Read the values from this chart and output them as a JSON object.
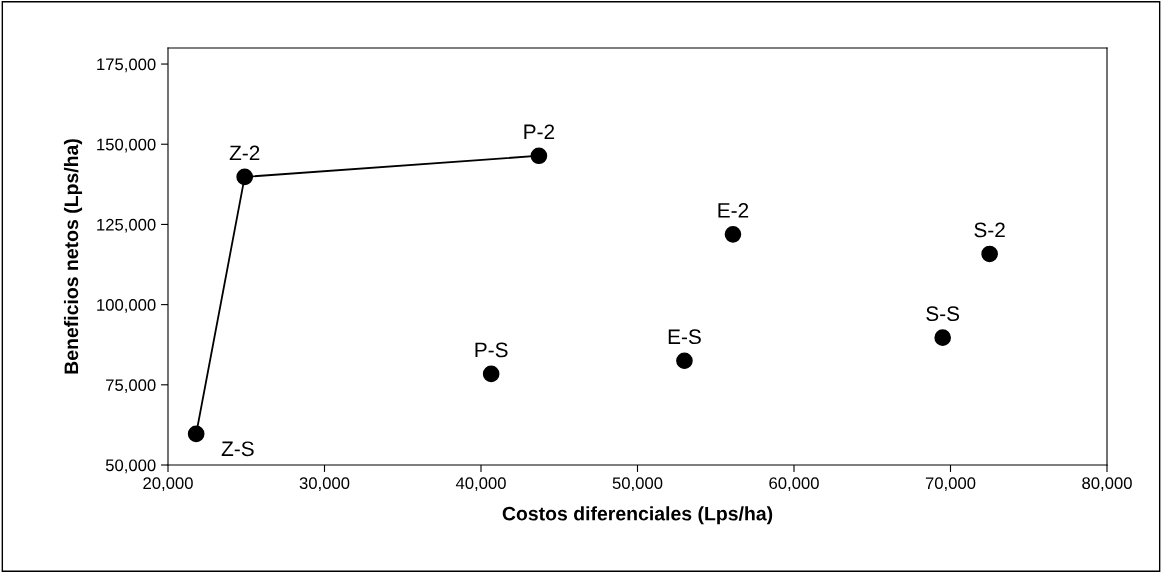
{
  "chart_data": {
    "type": "scatter",
    "xlabel": "Costos diferenciales (Lps/ha)",
    "ylabel": "Beneficios netos (Lps/ha)",
    "series": [
      {
        "type": "line",
        "color": "#000000",
        "x": [
          21800,
          24900,
          43700
        ],
        "values": [
          59700,
          139800,
          146400
        ]
      },
      {
        "color": "#000000",
        "x": [
          40650,
          53000,
          56100,
          69500,
          72500
        ],
        "values": [
          78400,
          82500,
          121900,
          89700,
          115800
        ]
      }
    ],
    "marker": "circle",
    "xlim": [
      20000,
      80000
    ],
    "xticks": [
      {
        "value": 20000,
        "label": "20,000"
      },
      {
        "value": 30000,
        "label": "30,000"
      },
      {
        "value": 40000,
        "label": "40,000"
      },
      {
        "value": 50000,
        "label": "50,000"
      },
      {
        "value": 60000,
        "label": "60,000"
      },
      {
        "value": 70000,
        "label": "70,000"
      },
      {
        "value": 80000,
        "label": "80,000"
      }
    ],
    "ylim": [
      50000,
      180000
    ],
    "yticks": [
      {
        "value": 50000,
        "label": "50,000"
      },
      {
        "value": 75000,
        "label": "75,000"
      },
      {
        "value": 100000,
        "label": "100,000"
      },
      {
        "value": 125000,
        "label": "125,000"
      },
      {
        "value": 150000,
        "label": "150,000"
      },
      {
        "value": 175000,
        "label": "175,000"
      }
    ],
    "grid": false,
    "legend": false,
    "annotations": [
      {
        "text": "Z-S",
        "x": 21800,
        "y": 59700
      },
      {
        "text": "Z-2",
        "x": 24900,
        "y": 139800
      },
      {
        "text": "P-2",
        "x": 43700,
        "y": 146400
      },
      {
        "text": "P-S",
        "x": 40650,
        "y": 78400
      },
      {
        "text": "E-S",
        "x": 53000,
        "y": 82500
      },
      {
        "text": "E-2",
        "x": 56100,
        "y": 121900
      },
      {
        "text": "S-S",
        "x": 69500,
        "y": 89700
      },
      {
        "text": "S-2",
        "x": 72500,
        "y": 115800
      }
    ]
  }
}
